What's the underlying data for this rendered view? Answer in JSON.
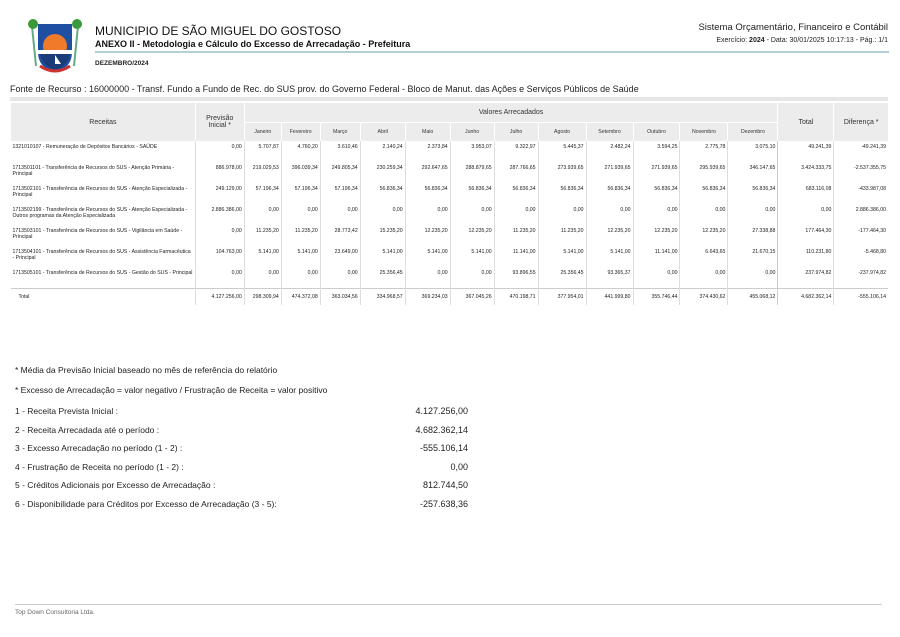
{
  "header": {
    "municipality": "MUNICIPIO DE SÃO MIGUEL DO GOSTOSO",
    "title": "ANEXO II - Metodologia e Cálculo do Excesso de Arrecadação - Prefeitura",
    "period": "DEZEMBRO/2024",
    "system": "Sistema Orçamentário, Financeiro e Contábil",
    "exercise_label": "Exercício:",
    "exercise": "2024",
    "date_page": "- Data: 30/01/2025 10:17:13 -   Pág.: 1/1"
  },
  "fonte": "Fonte de Recurso : 16000000 - Transf. Fundo a Fundo de Rec. do SUS prov. do Governo Federal - Bloco de Manut. das Ações e Serviços Públicos de Saúde",
  "table": {
    "headers": {
      "receitas": "Receitas",
      "previsao": "Previsão Inicial *",
      "valores": "Valores Arrecadados",
      "total": "Total",
      "diferenca": "Diferença *"
    },
    "months": [
      "Janeiro",
      "Fevereiro",
      "Março",
      "Abril",
      "Maio",
      "Junho",
      "Julho",
      "Agosto",
      "Setembro",
      "Outubro",
      "Novembro",
      "Dezembro"
    ],
    "rows": [
      {
        "desc": "1321010107 - Remuneração de Depósitos Bancários - SAÚDE",
        "vals": [
          "0,00",
          "5.707,87",
          "4.760,20",
          "3.610,46",
          "2.140,24",
          "2.373,84",
          "3.953,07",
          "9.322,97",
          "5.445,37",
          "2.482,24",
          "3.594,25",
          "2.775,78",
          "3.075,10",
          "49.241,39",
          "-49.241,39"
        ]
      },
      {
        "desc": "1713501101 - Transferência de Recursos do SUS - Atenção Primária - Principal",
        "vals": [
          "886.978,00",
          "219.029,53",
          "396.039,34",
          "249.805,34",
          "230.259,34",
          "292.647,65",
          "288.879,65",
          "287.766,65",
          "273.939,65",
          "271.939,65",
          "271.939,65",
          "295.939,65",
          "346.147,65",
          "3.424.333,75",
          "-2.537.355,75"
        ]
      },
      {
        "desc": "1713502101 - Transferência de Recursos do SUS - Atenção Especializada - Principal",
        "vals": [
          "249.129,00",
          "57.196,34",
          "57.196,34",
          "57.196,34",
          "56.836,34",
          "56.836,34",
          "56.836,34",
          "56.836,34",
          "56.836,34",
          "56.836,34",
          "56.836,34",
          "56.836,34",
          "56.836,34",
          "683.116,08",
          "-433.987,08"
        ]
      },
      {
        "desc": "1713502199 - Transferência de Recursos do SUS - Atenção Especializada - Outros programas da Atenção Especializada",
        "vals": [
          "2.886.386,00",
          "0,00",
          "0,00",
          "0,00",
          "0,00",
          "0,00",
          "0,00",
          "0,00",
          "0,00",
          "0,00",
          "0,00",
          "0,00",
          "0,00",
          "0,00",
          "2.886.386,00"
        ]
      },
      {
        "desc": "1713503101 - Transferência de Recursos do SUS - Vigilância em Saúde - Principal",
        "vals": [
          "0,00",
          "11.235,20",
          "11.235,20",
          "28.773,42",
          "15.235,20",
          "12.235,20",
          "12.235,20",
          "11.235,20",
          "11.235,20",
          "12.235,20",
          "12.235,20",
          "12.235,20",
          "27.338,88",
          "177.464,30",
          "-177.464,30"
        ]
      },
      {
        "desc": "1713504101 - Transferência de Recursos do SUS - Assistência Farmacêutica - Principal",
        "vals": [
          "104.763,00",
          "5.141,00",
          "5.141,00",
          "23.649,00",
          "5.141,00",
          "5.141,00",
          "5.141,00",
          "11.141,00",
          "5.141,00",
          "5.141,00",
          "11.141,00",
          "6.643,65",
          "21.670,15",
          "110.231,80",
          "-5.468,80"
        ]
      },
      {
        "desc": "1713505101 - Transferência de Recursos do SUS - Gestão do SUS - Principal",
        "vals": [
          "0,00",
          "0,00",
          "0,00",
          "0,00",
          "25.356,45",
          "0,00",
          "0,00",
          "93.896,55",
          "25.356,45",
          "93.365,37",
          "0,00",
          "0,00",
          "0,00",
          "237.974,82",
          "-237.974,82"
        ]
      }
    ],
    "total": {
      "desc": "Total",
      "vals": [
        "4.127.256,00",
        "298.309,94",
        "474.372,08",
        "363.034,56",
        "334.968,57",
        "369.234,03",
        "367.045,26",
        "470.198,71",
        "377.954,01",
        "441.999,80",
        "355.746,44",
        "374.430,62",
        "455.068,12",
        "4.682.362,14",
        "-555.106,14"
      ]
    }
  },
  "notes": [
    "* Média da Previsão Inicial baseado no mês de referência do relatório",
    "* Excesso de Arrecadação = valor negativo / Frustração de Receita = valor positivo"
  ],
  "summary": [
    {
      "label": "1 - Receita Prevista Inicial :",
      "value": "4.127.256,00"
    },
    {
      "label": "2 - Receita Arrecadada até o período :",
      "value": "4.682.362,14"
    },
    {
      "label": "3 - Excesso Arrecadação no período (1 - 2) :",
      "value": "-555.106,14"
    },
    {
      "label": "4 - Frustração de Receita no período (1 - 2) :",
      "value": "0,00"
    },
    {
      "label": "5 - Créditos Adicionais por Excesso de Arrecadação :",
      "value": "812.744,50"
    },
    {
      "label": "6 - Disponibilidade para Créditos por Excesso de Arrecadação  (3 - 5):",
      "value": "-257.638,36"
    }
  ],
  "footer": "Top Down Consultoria Ltda."
}
